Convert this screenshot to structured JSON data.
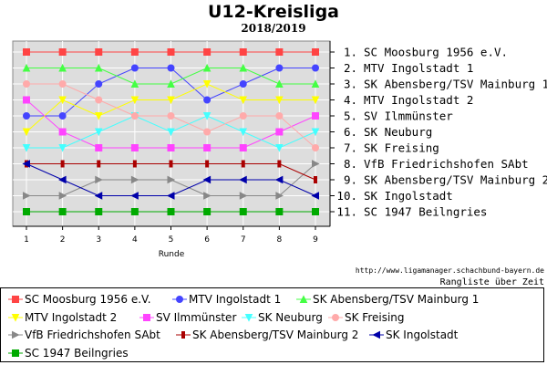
{
  "title": "U12-Kreisliga",
  "subtitle": "2018/2019",
  "source": "http://www.ligamanager.schachbund-bayern.de",
  "footer": "Rangliste über Zeit",
  "chart_data": {
    "type": "line",
    "xlabel": "Runde",
    "ylabel": "",
    "x": [
      1,
      2,
      3,
      4,
      5,
      6,
      7,
      8,
      9
    ],
    "ylim": [
      11,
      1
    ],
    "grid": true,
    "legend_placement": "bottom",
    "rank_labels": [
      "1. SC Moosburg 1956 e.V.",
      "2. MTV Ingolstadt 1",
      "3. SK Abensberg/TSV Mainburg 1",
      "4. MTV Ingolstadt 2",
      "5. SV Ilmmünster",
      "6. SK Neuburg",
      "7. SK Freising",
      "8. VfB Friedrichshofen SAbt",
      "9. SK Abensberg/TSV Mainburg 2",
      "10. SK Ingolstadt",
      "11. SC 1947 Beilngries"
    ],
    "series": [
      {
        "name": "SC Moosburg 1956 e.V.",
        "color": "#ff4444",
        "marker": "square",
        "values": [
          1,
          1,
          1,
          1,
          1,
          1,
          1,
          1,
          1
        ]
      },
      {
        "name": "MTV Ingolstadt 1",
        "color": "#4444ff",
        "marker": "circle",
        "values": [
          5,
          5,
          3,
          2,
          2,
          4,
          3,
          2,
          2
        ]
      },
      {
        "name": "SK Abensberg/TSV Mainburg 1",
        "color": "#44ff44",
        "marker": "triangle-up",
        "values": [
          2,
          2,
          2,
          3,
          3,
          2,
          2,
          3,
          3
        ]
      },
      {
        "name": "MTV Ingolstadt 2",
        "color": "#ffff00",
        "marker": "triangle-down",
        "values": [
          6,
          4,
          5,
          4,
          4,
          3,
          4,
          4,
          4
        ]
      },
      {
        "name": "SV Ilmmünster",
        "color": "#ff44ff",
        "marker": "square",
        "values": [
          4,
          6,
          7,
          7,
          7,
          7,
          7,
          6,
          5
        ]
      },
      {
        "name": "SK Neuburg",
        "color": "#44ffff",
        "marker": "triangle-down",
        "values": [
          7,
          7,
          6,
          5,
          6,
          5,
          6,
          7,
          6
        ]
      },
      {
        "name": "SK Freising",
        "color": "#ffaaaa",
        "marker": "circle",
        "values": [
          3,
          3,
          4,
          5,
          5,
          6,
          5,
          5,
          7
        ]
      },
      {
        "name": "VfB Friedrichshofen SAbt",
        "color": "#888888",
        "marker": "triangle-right",
        "values": [
          10,
          10,
          9,
          9,
          9,
          10,
          10,
          10,
          8
        ]
      },
      {
        "name": "SK Abensberg/TSV Mainburg 2",
        "color": "#aa0000",
        "marker": "bar",
        "values": [
          8,
          8,
          8,
          8,
          8,
          8,
          8,
          8,
          9
        ]
      },
      {
        "name": "SK Ingolstadt",
        "color": "#0000aa",
        "marker": "triangle-left",
        "values": [
          8,
          9,
          10,
          10,
          10,
          9,
          9,
          9,
          10
        ]
      },
      {
        "name": "SC 1947 Beilngries",
        "color": "#00aa00",
        "marker": "square",
        "values": [
          11,
          11,
          11,
          11,
          11,
          11,
          11,
          11,
          11
        ]
      }
    ]
  }
}
